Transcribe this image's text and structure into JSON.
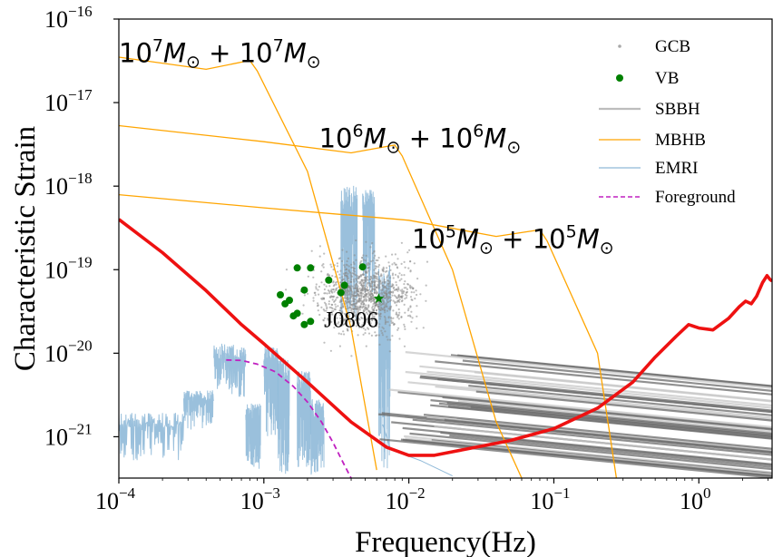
{
  "chart_data": {
    "type": "line",
    "title": "",
    "xlabel": "Frequency(Hz)",
    "ylabel": "Characteristic Strain",
    "xscale": "log",
    "yscale": "log",
    "xlim": [
      0.0001,
      3.2
    ],
    "ylim": [
      3.2e-22,
      1e-16
    ],
    "x_ticks": [
      {
        "value": 0.0001,
        "base": "10",
        "exp": "−4"
      },
      {
        "value": 0.001,
        "base": "10",
        "exp": "−3"
      },
      {
        "value": 0.01,
        "base": "10",
        "exp": "−2"
      },
      {
        "value": 0.1,
        "base": "10",
        "exp": "−1"
      },
      {
        "value": 1,
        "base": "10",
        "exp": "0"
      }
    ],
    "y_ticks": [
      {
        "value": 1e-21,
        "base": "10",
        "exp": "−21"
      },
      {
        "value": 1e-20,
        "base": "10",
        "exp": "−20"
      },
      {
        "value": 1e-19,
        "base": "10",
        "exp": "−19"
      },
      {
        "value": 1e-18,
        "base": "10",
        "exp": "−18"
      },
      {
        "value": 1e-17,
        "base": "10",
        "exp": "−17"
      },
      {
        "value": 1e-16,
        "base": "10",
        "exp": "−16"
      }
    ],
    "legend": {
      "placement": "upper right",
      "entries": [
        {
          "label": "GCB",
          "marker": "dot",
          "color": "#a9a9a9"
        },
        {
          "label": "VB",
          "marker": "circle",
          "color": "#008000"
        },
        {
          "label": "SBBH",
          "marker": "line",
          "color": "#bdbdbd"
        },
        {
          "label": "MBHB",
          "marker": "line",
          "color": "#ffa500"
        },
        {
          "label": "EMRI",
          "marker": "line",
          "color": "#8fb9d8"
        },
        {
          "label": "Foreground",
          "marker": "dashed",
          "color": "#c020c0"
        }
      ]
    },
    "colors": {
      "sensitivity": "#ee1111",
      "mbhb": "#ffa500",
      "emri": "#8fb9d8",
      "foreground": "#c020c0",
      "vb": "#008000",
      "gcb": "#8a8a8a",
      "sbbh_light": "#c8c8c8",
      "sbbh_dark": "#6b6b6b"
    },
    "sensitivity_curve": [
      [
        0.0001,
        4e-19
      ],
      [
        0.0002,
        1.6e-19
      ],
      [
        0.0004,
        5.6e-20
      ],
      [
        0.0007,
        2.2e-20
      ],
      [
        0.001,
        1.3e-20
      ],
      [
        0.002,
        4.5e-21
      ],
      [
        0.004,
        1.5e-21
      ],
      [
        0.007,
        7.5e-22
      ],
      [
        0.01,
        6e-22
      ],
      [
        0.015,
        6e-22
      ],
      [
        0.02,
        6.6e-22
      ],
      [
        0.05,
        9e-22
      ],
      [
        0.1,
        1.25e-21
      ],
      [
        0.2,
        2.2e-21
      ],
      [
        0.35,
        4.5e-21
      ],
      [
        0.5,
        9e-21
      ],
      [
        0.7,
        1.6e-20
      ],
      [
        0.85,
        2.2e-20
      ],
      [
        1.0,
        2e-20
      ],
      [
        1.25,
        1.9e-20
      ],
      [
        1.6,
        2.6e-20
      ],
      [
        1.9,
        3.6e-20
      ],
      [
        2.1,
        4.2e-20
      ],
      [
        2.3,
        3.9e-20
      ],
      [
        2.5,
        4.8e-20
      ],
      [
        2.75,
        7e-20
      ],
      [
        2.95,
        8.5e-20
      ],
      [
        3.1,
        7.6e-20
      ],
      [
        3.2,
        7.3e-20
      ]
    ],
    "mbhb_tracks": [
      {
        "name": "10^7+10^7",
        "points": [
          [
            0.0001,
            3.5e-17
          ],
          [
            0.0004,
            2.5e-17
          ],
          [
            0.0008,
            3.2e-17
          ],
          [
            0.0009,
            2.4e-17
          ],
          [
            0.002,
            1.5e-18
          ],
          [
            0.004,
            2e-20
          ],
          [
            0.006,
            4e-22
          ]
        ]
      },
      {
        "name": "10^6+10^6",
        "points": [
          [
            0.0001,
            5.3e-18
          ],
          [
            0.001,
            3.4e-18
          ],
          [
            0.004,
            2.5e-18
          ],
          [
            0.008,
            3.1e-18
          ],
          [
            0.009,
            2.3e-18
          ],
          [
            0.02,
            1e-19
          ],
          [
            0.04,
            1.5e-21
          ],
          [
            0.06,
            3.2e-22
          ]
        ]
      },
      {
        "name": "10^5+10^5",
        "points": [
          [
            0.0001,
            7.9e-19
          ],
          [
            0.001,
            5.5e-19
          ],
          [
            0.01,
            3.9e-19
          ],
          [
            0.04,
            2.5e-19
          ],
          [
            0.08,
            3e-19
          ],
          [
            0.09,
            2.2e-19
          ],
          [
            0.2,
            1e-20
          ],
          [
            0.27,
            3.2e-22
          ]
        ]
      }
    ],
    "mbhb_labels": [
      {
        "base1": "10",
        "exp1": "7",
        "base2": "10",
        "exp2": "7",
        "anchor_x": 0.0001,
        "anchor_y": 4.1e-17
      },
      {
        "base1": "10",
        "exp1": "6",
        "base2": "10",
        "exp2": "6",
        "anchor_x": 0.0024,
        "anchor_y": 3.9e-18
      },
      {
        "base1": "10",
        "exp1": "5",
        "base2": "10",
        "exp2": "5",
        "anchor_x": 0.0105,
        "anchor_y": 2.45e-19
      }
    ],
    "mass_symbol": "M",
    "mass_subscript": "⊙",
    "foreground_curve": [
      [
        0.00055,
        8.3e-21
      ],
      [
        0.0007,
        8.2e-21
      ],
      [
        0.0009,
        7.4e-21
      ],
      [
        0.0012,
        6e-21
      ],
      [
        0.0016,
        4e-21
      ],
      [
        0.002,
        2.6e-21
      ],
      [
        0.0025,
        1.5e-21
      ],
      [
        0.003,
        8.5e-22
      ],
      [
        0.0035,
        5e-22
      ],
      [
        0.004,
        3.2e-22
      ]
    ],
    "vb_points": [
      [
        0.0017,
        1.05e-19
      ],
      [
        0.0021,
        1.05e-19
      ],
      [
        0.0048,
        1.08e-19
      ],
      [
        0.0028,
        7.5e-20
      ],
      [
        0.0036,
        6.5e-20
      ],
      [
        0.0019,
        5.7e-20
      ],
      [
        0.0034,
        5.3e-20
      ],
      [
        0.0013,
        5e-20
      ],
      [
        0.0015,
        4.3e-20
      ],
      [
        0.0014,
        3.9e-20
      ],
      [
        0.0017,
        3e-20
      ],
      [
        0.0016,
        2.8e-20
      ],
      [
        0.0021,
        2.4e-20
      ],
      [
        0.0019,
        2.2e-20
      ]
    ],
    "j0806": {
      "label": "J0806",
      "x": 0.0062,
      "y": 4.5e-20,
      "label_x": 0.0026,
      "label_y": 2.5e-20
    },
    "gcb_cloud": {
      "center_x": 0.005,
      "center_y": 5e-20,
      "count": 1200,
      "spread_x_dex": 0.16,
      "spread_y_dex": 0.22
    },
    "sbbh_tracks": {
      "count": 48,
      "f_start_min": 0.006,
      "f_start_max": 0.03,
      "h_start_min": 9e-22,
      "h_start_max": 1.1e-20,
      "slope_dex": -0.17
    },
    "emri_segments": [
      {
        "f_start": 0.0001,
        "f_end": 0.00028,
        "h_low": 5e-22,
        "h_high": 2.2e-21
      },
      {
        "f_start": 0.00028,
        "f_end": 0.00045,
        "h_low": 1.2e-21,
        "h_high": 4e-21
      },
      {
        "f_start": 0.00045,
        "f_end": 0.00075,
        "h_low": 3e-21,
        "h_high": 1.5e-20
      },
      {
        "f_start": 0.00075,
        "f_end": 0.00095,
        "h_low": 4e-22,
        "h_high": 3e-21
      },
      {
        "f_start": 0.001,
        "f_end": 0.00125,
        "h_low": 1e-21,
        "h_high": 1.6e-20
      },
      {
        "f_start": 0.00125,
        "f_end": 0.0015,
        "h_low": 3.5e-22,
        "h_high": 1.2e-20
      },
      {
        "f_start": 0.0017,
        "f_end": 0.0021,
        "h_low": 4e-22,
        "h_high": 8e-21
      },
      {
        "f_start": 0.0021,
        "f_end": 0.0026,
        "h_low": 3.4e-22,
        "h_high": 3.5e-21
      },
      {
        "f_start": 0.0034,
        "f_end": 0.0044,
        "h_low": 2.5e-20,
        "h_high": 1.5e-18
      },
      {
        "f_start": 0.0048,
        "f_end": 0.0058,
        "h_low": 5e-20,
        "h_high": 1.2e-18
      },
      {
        "f_start": 0.0062,
        "f_end": 0.0075,
        "h_low": 4e-22,
        "h_high": 2e-19
      }
    ]
  }
}
